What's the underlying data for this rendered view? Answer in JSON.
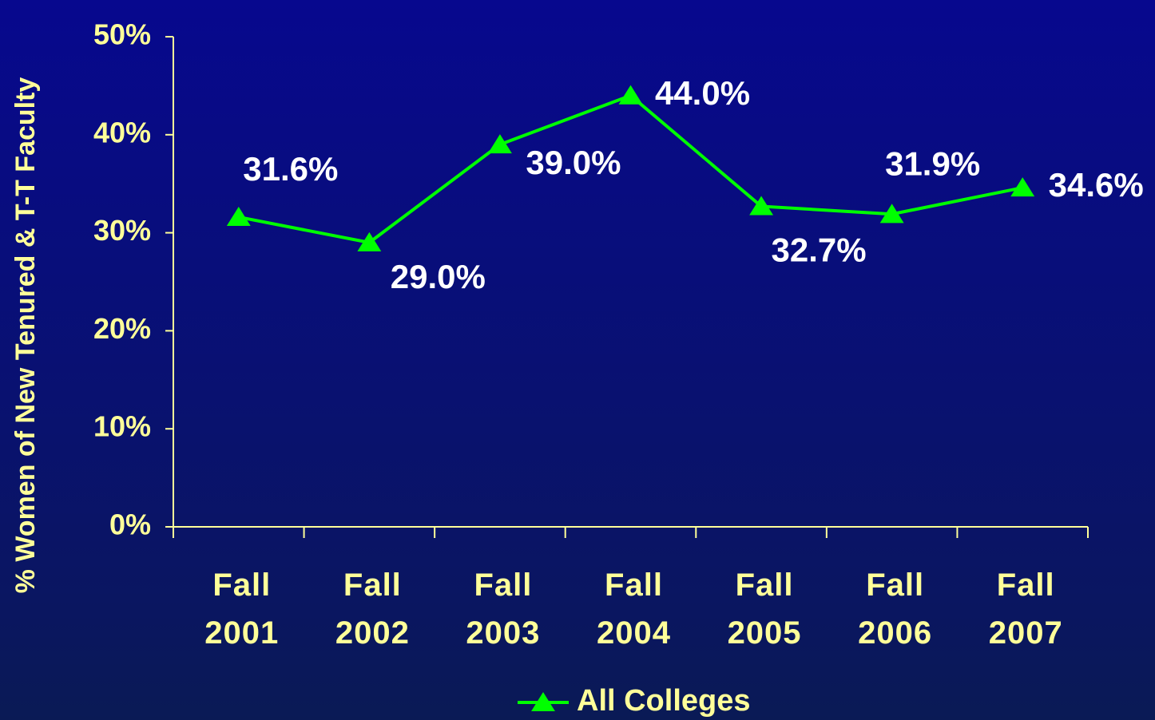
{
  "chart_data": {
    "type": "line",
    "y_label": "% Women of New Tenured & T-T Faculty",
    "categories": [
      "Fall 2001",
      "Fall 2002",
      "Fall 2003",
      "Fall 2004",
      "Fall 2005",
      "Fall 2006",
      "Fall 2007"
    ],
    "series": [
      {
        "name": "All Colleges",
        "color": "#00ff00",
        "values": [
          31.6,
          29.0,
          39.0,
          44.0,
          32.7,
          31.9,
          34.6
        ],
        "value_labels": [
          "31.6%",
          "29.0%",
          "39.0%",
          "44.0%",
          "32.7%",
          "31.9%",
          "34.6%"
        ]
      }
    ],
    "ylim": [
      0,
      50
    ],
    "yticks": [
      {
        "value": 0,
        "label": "0%"
      },
      {
        "value": 10,
        "label": "10%"
      },
      {
        "value": 20,
        "label": "20%"
      },
      {
        "value": 30,
        "label": "30%"
      },
      {
        "value": 40,
        "label": "40%"
      },
      {
        "value": 50,
        "label": "50%"
      }
    ],
    "grid": false,
    "legend": "bottom"
  }
}
